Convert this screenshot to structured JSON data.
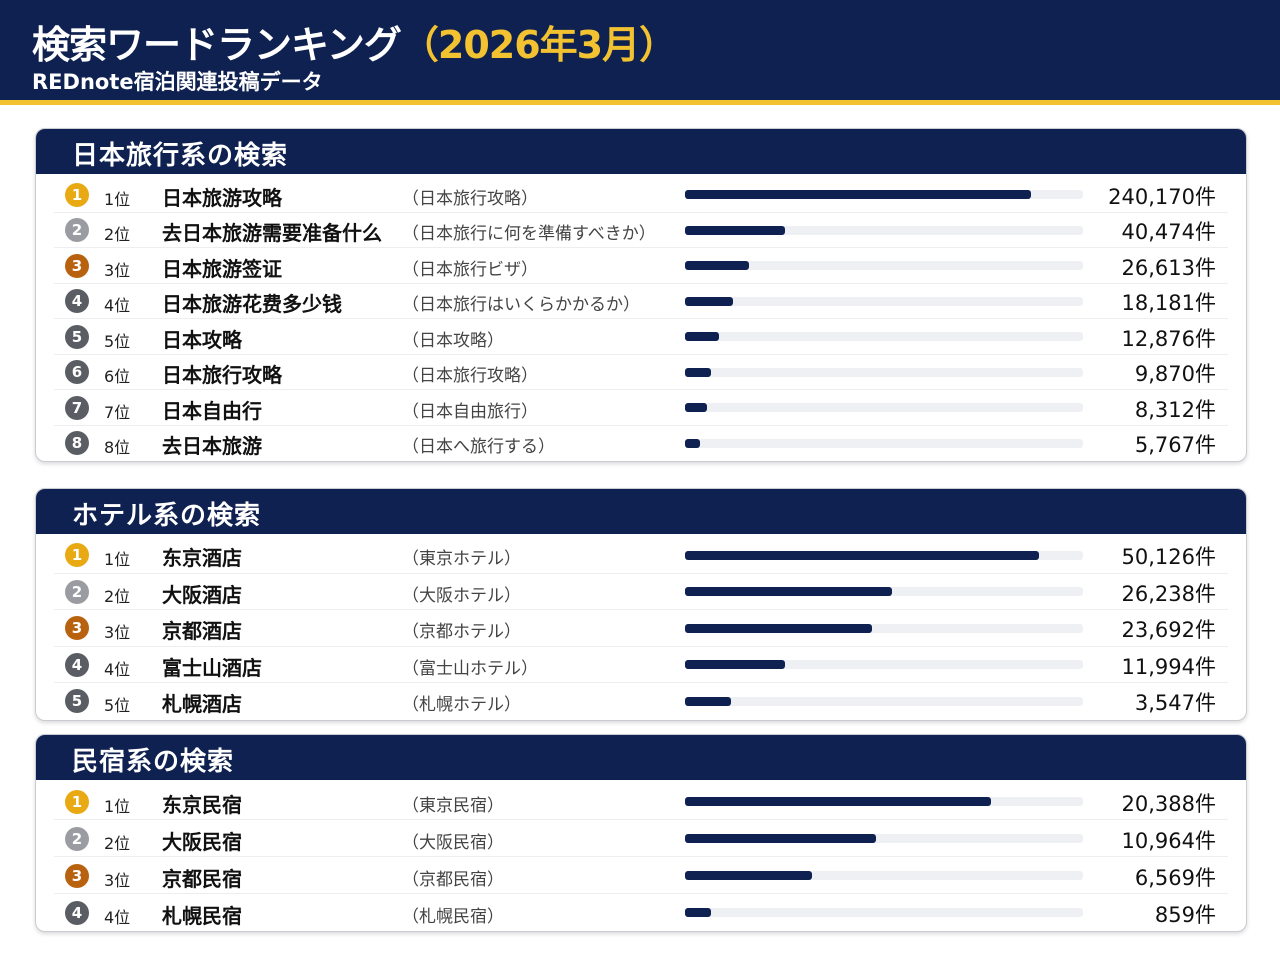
{
  "header": {
    "title": "検索ワードランキング",
    "title_period": "（2026年3月）",
    "subtitle": "REDnote宿泊関連投稿データ"
  },
  "colors": {
    "navy": "#0f2150",
    "gold": "#e8a912",
    "silver": "#9a9ca1",
    "bronze": "#b8620f",
    "gray": "#5a5d63",
    "accent": "#f2c230"
  },
  "sections": [
    {
      "title": "日本旅行系の検索",
      "rows": [
        {
          "medal": "1",
          "rank": "1位",
          "term": "日本旅游攻略",
          "jp": "（日本旅行攻略）",
          "count": "240,170件",
          "bar": 0.87
        },
        {
          "medal": "2",
          "rank": "2位",
          "term": "去日本旅游需要准备什么",
          "jp": "（日本旅行に何を準備すべきか）",
          "count": "40,474件",
          "bar": 0.25
        },
        {
          "medal": "3",
          "rank": "3位",
          "term": "日本旅游签证",
          "jp": "（日本旅行ビザ）",
          "count": "26,613件",
          "bar": 0.16
        },
        {
          "medal": "4",
          "rank": "4位",
          "term": "日本旅游花费多少钱",
          "jp": "（日本旅行はいくらかかるか）",
          "count": "18,181件",
          "bar": 0.12
        },
        {
          "medal": "5",
          "rank": "5位",
          "term": "日本攻略",
          "jp": "（日本攻略）",
          "count": "12,876件",
          "bar": 0.085
        },
        {
          "medal": "6",
          "rank": "6位",
          "term": "日本旅行攻略",
          "jp": "（日本旅行攻略）",
          "count": "9,870件",
          "bar": 0.065
        },
        {
          "medal": "7",
          "rank": "7位",
          "term": "日本自由行",
          "jp": "（日本自由旅行）",
          "count": "8,312件",
          "bar": 0.055
        },
        {
          "medal": "8",
          "rank": "8位",
          "term": "去日本旅游",
          "jp": "（日本へ旅行する）",
          "count": "5,767件",
          "bar": 0.038
        }
      ]
    },
    {
      "title": "ホテル系の検索",
      "rows": [
        {
          "medal": "1",
          "rank": "1位",
          "term": "东京酒店",
          "jp": "（東京ホテル）",
          "count": "50,126件",
          "bar": 0.89
        },
        {
          "medal": "2",
          "rank": "2位",
          "term": "大阪酒店",
          "jp": "（大阪ホテル）",
          "count": "26,238件",
          "bar": 0.52
        },
        {
          "medal": "3",
          "rank": "3位",
          "term": "京都酒店",
          "jp": "（京都ホテル）",
          "count": "23,692件",
          "bar": 0.47
        },
        {
          "medal": "4",
          "rank": "4位",
          "term": "富士山酒店",
          "jp": "（富士山ホテル）",
          "count": "11,994件",
          "bar": 0.25
        },
        {
          "medal": "5",
          "rank": "5位",
          "term": "札幌酒店",
          "jp": "（札幌ホテル）",
          "count": "3,547件",
          "bar": 0.115
        }
      ]
    },
    {
      "title": "民宿系の検索",
      "rows": [
        {
          "medal": "1",
          "rank": "1位",
          "term": "东京民宿",
          "jp": "（東京民宿）",
          "count": "20,388件",
          "bar": 0.77
        },
        {
          "medal": "2",
          "rank": "2位",
          "term": "大阪民宿",
          "jp": "（大阪民宿）",
          "count": "10,964件",
          "bar": 0.48
        },
        {
          "medal": "3",
          "rank": "3位",
          "term": "京都民宿",
          "jp": "（京都民宿）",
          "count": "6,569件",
          "bar": 0.32
        },
        {
          "medal": "4",
          "rank": "4位",
          "term": "札幌民宿",
          "jp": "（札幌民宿）",
          "count": "859件",
          "bar": 0.065
        }
      ]
    }
  ]
}
